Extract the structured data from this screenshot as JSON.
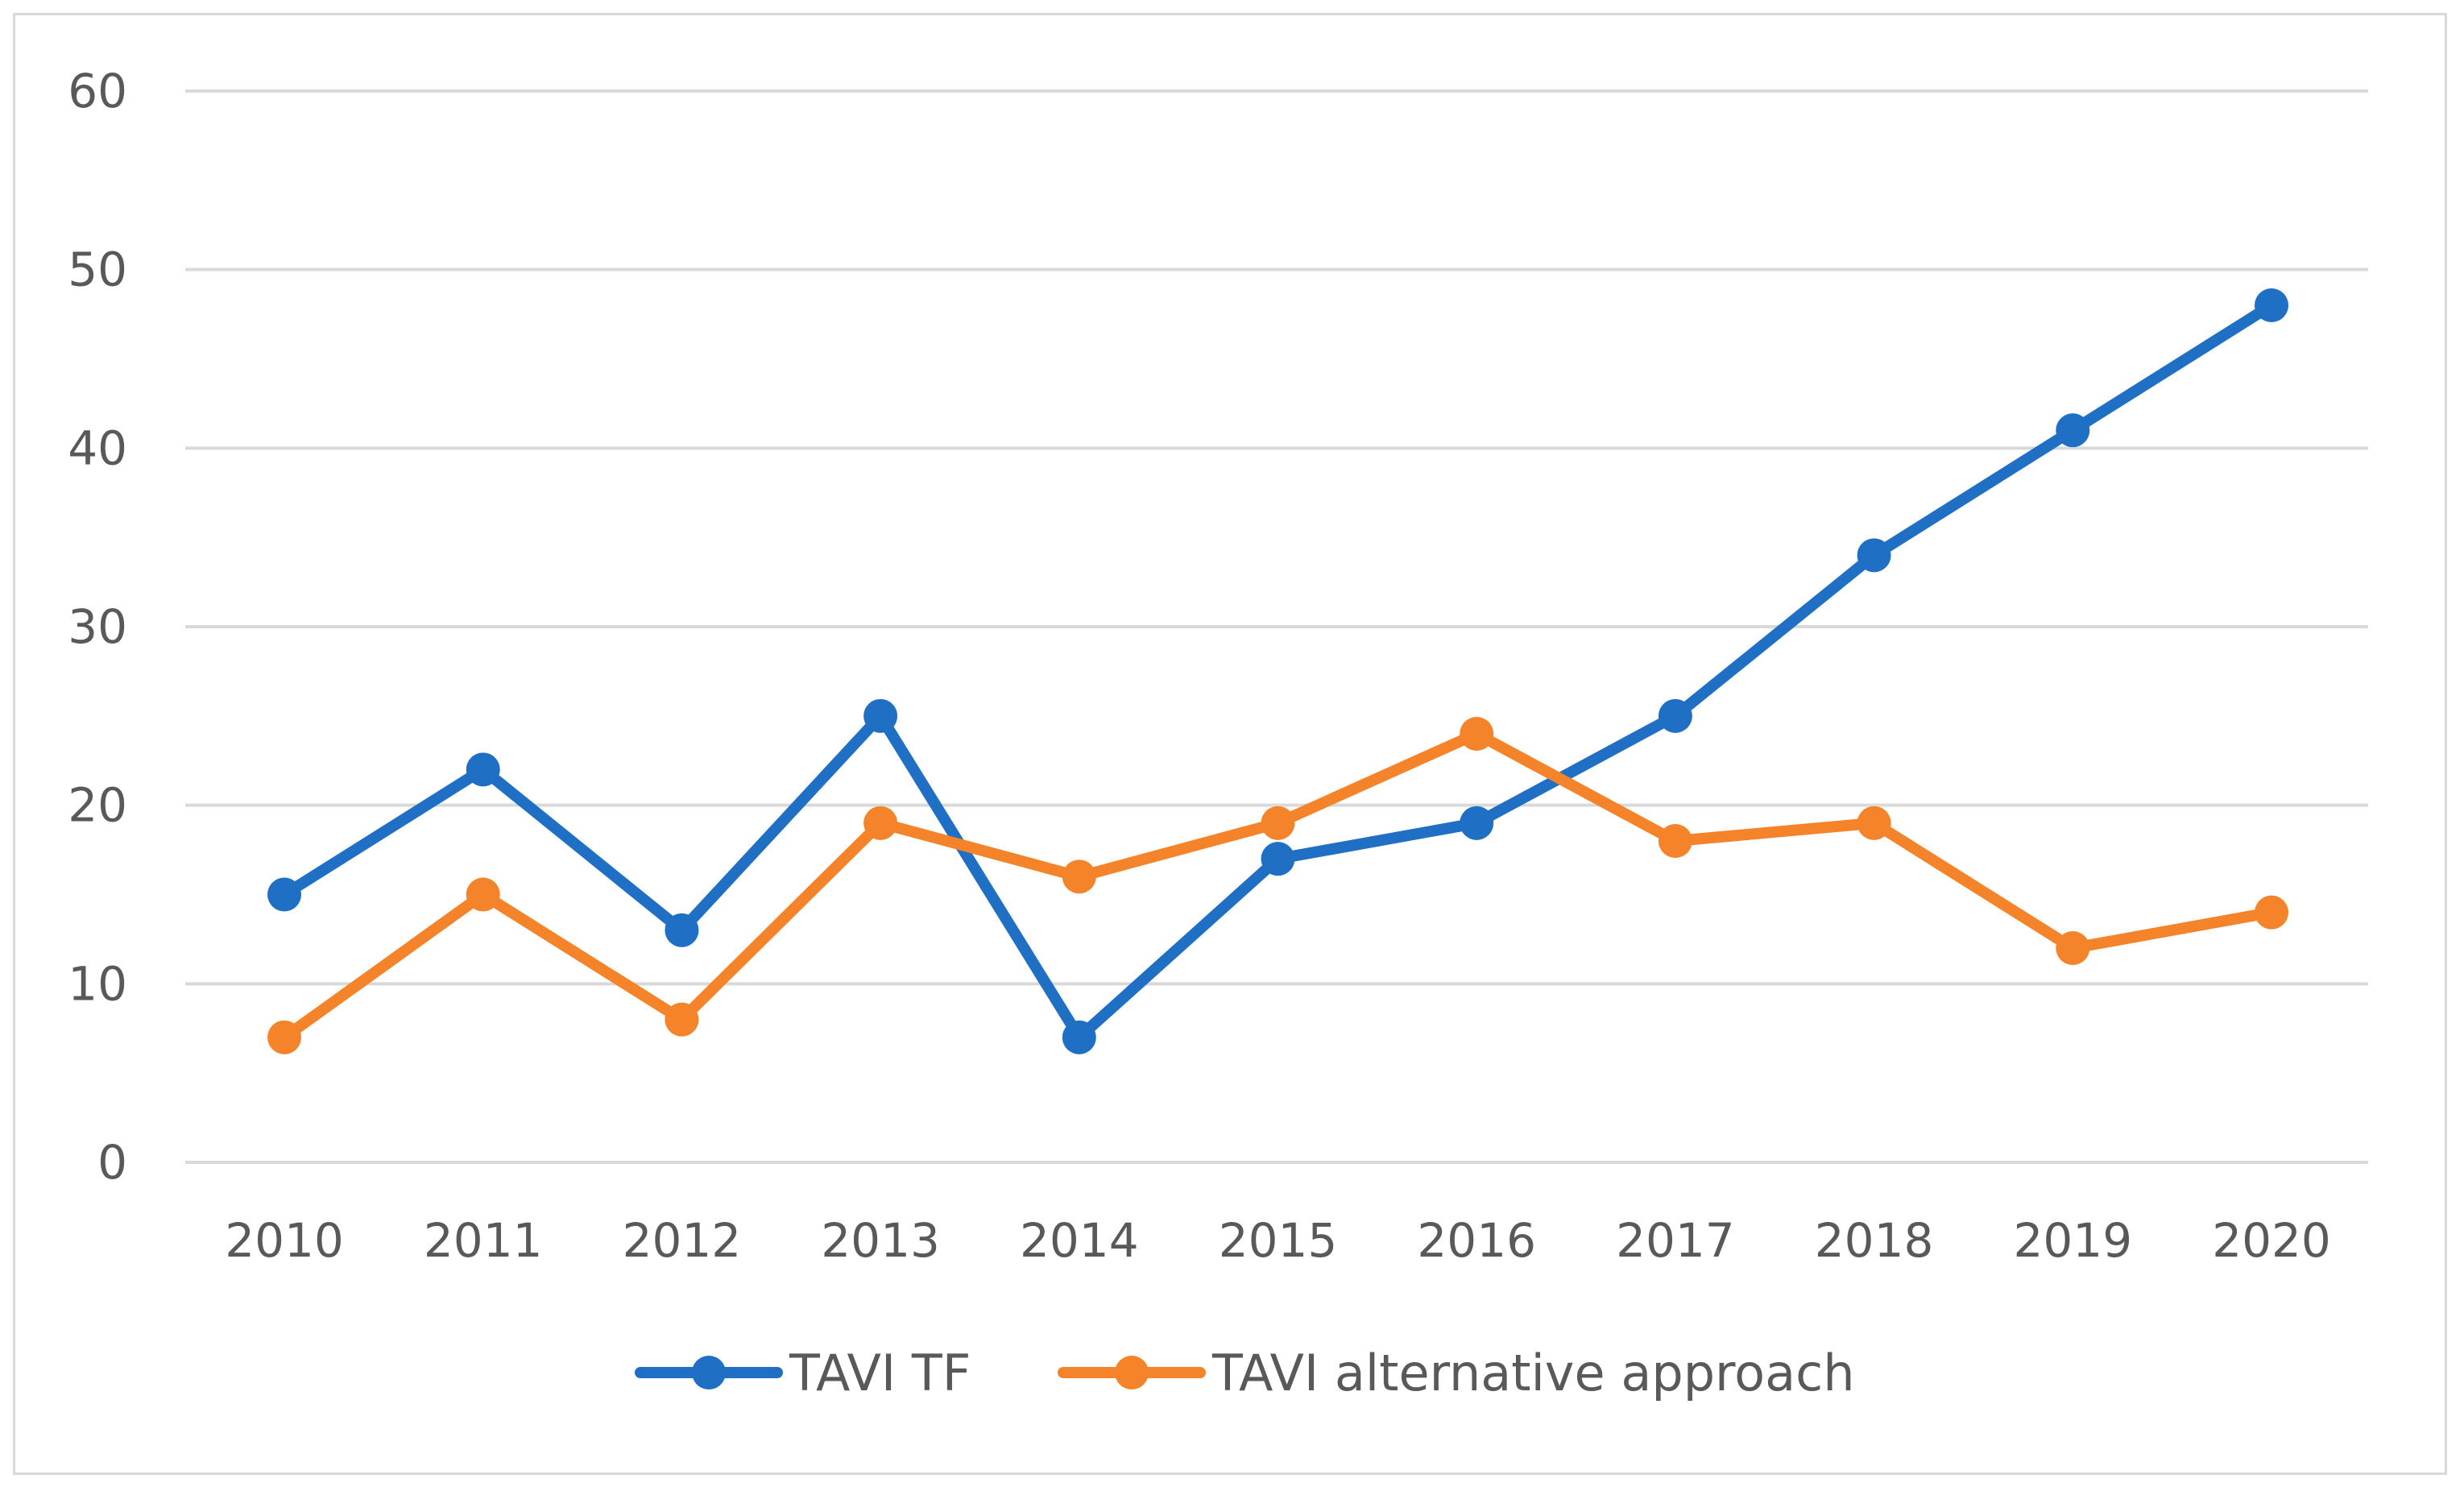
{
  "chart_data": {
    "type": "line",
    "title": "",
    "xlabel": "",
    "ylabel": "",
    "categories": [
      "2010",
      "2011",
      "2012",
      "2013",
      "2014",
      "2015",
      "2016",
      "2017",
      "2018",
      "2019",
      "2020"
    ],
    "ylim": [
      0,
      60
    ],
    "yticks": [
      "0",
      "10",
      "20",
      "30",
      "40",
      "50",
      "60"
    ],
    "grid": true,
    "legend_position": "bottom",
    "series": [
      {
        "name": "TAVI TF",
        "color": "#1f6fc5",
        "values": [
          15,
          22,
          13,
          25,
          7,
          17,
          19,
          25,
          34,
          41,
          48
        ]
      },
      {
        "name": "TAVI alternative approach",
        "color": "#f4832a",
        "values": [
          7,
          15,
          8,
          19,
          16,
          19,
          24,
          18,
          19,
          12,
          14
        ]
      }
    ]
  }
}
